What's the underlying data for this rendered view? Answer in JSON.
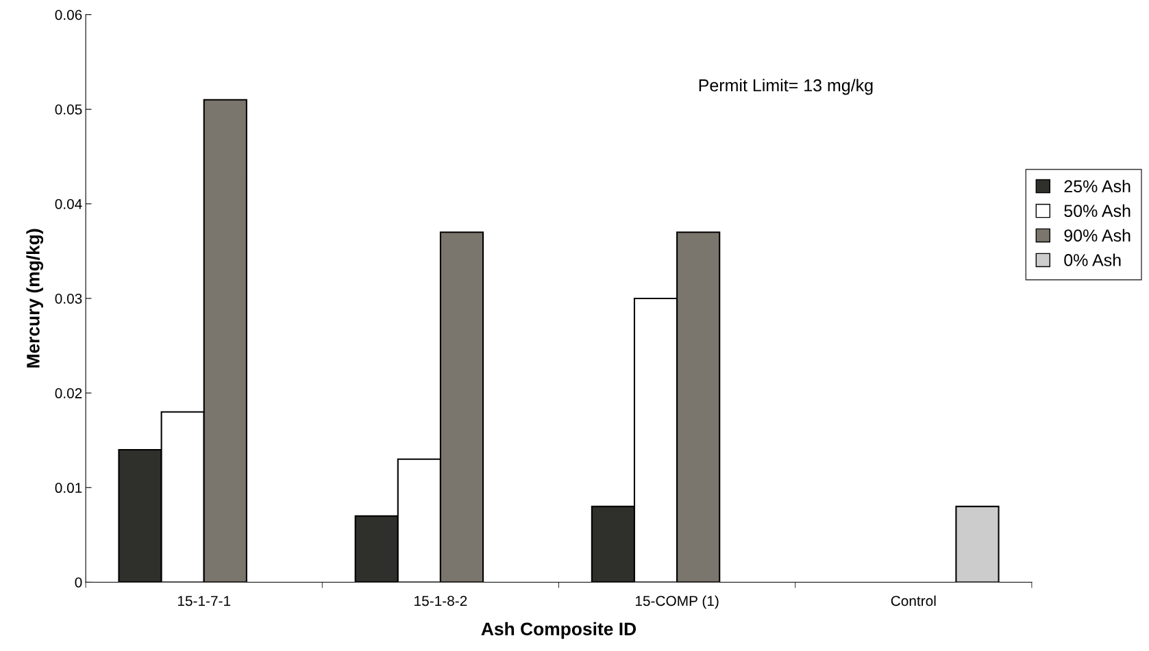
{
  "chart_data": {
    "type": "bar",
    "xlabel": "Ash Composite ID",
    "ylabel": "Mercury (mg/kg)",
    "categories": [
      "15-1-7-1",
      "15-1-8-2",
      "15-COMP (1)",
      "Control"
    ],
    "series": [
      {
        "name": "25% Ash",
        "color": "#2f2f2b",
        "values": [
          0.014,
          0.007,
          0.008,
          null
        ]
      },
      {
        "name": "50% Ash",
        "color": "#ffffff",
        "values": [
          0.018,
          0.013,
          0.03,
          null
        ]
      },
      {
        "name": "90% Ash",
        "color": "#7a756d",
        "values": [
          0.051,
          0.037,
          0.037,
          null
        ]
      },
      {
        "name": "0% Ash",
        "color": "#cccccc",
        "values": [
          null,
          null,
          null,
          0.008
        ]
      }
    ],
    "ylim": [
      0,
      0.06
    ],
    "yticks": [
      0,
      0.01,
      0.02,
      0.03,
      0.04,
      0.05,
      0.06
    ],
    "annotations": [
      "Permit Limit= 13 mg/kg"
    ],
    "legend": "right",
    "grid": false
  }
}
